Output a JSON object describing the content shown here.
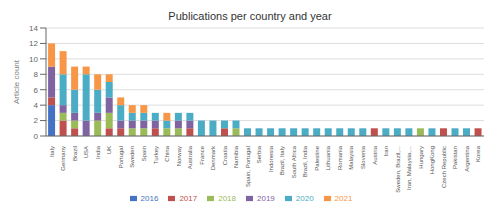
{
  "chart_data": {
    "type": "bar",
    "title": "Publications per country and year",
    "ylabel": "Article count",
    "categories": [
      "Italy",
      "Germany",
      "Brazil",
      "USA",
      "India",
      "UK",
      "Portugal",
      "Sweden",
      "Spain",
      "Turkey",
      "China",
      "Norway",
      "Australia",
      "France",
      "Denmark",
      "Croatia",
      "Namibia",
      "Spain, Portugal",
      "Serbia",
      "Indonesia",
      "Brazil, Italy",
      "South Africa",
      "Brazil, India",
      "Palestine",
      "Lithuania",
      "Romania",
      "Malaysia",
      "Slovenia",
      "Austria",
      "Iran",
      "Sweden, Brazil,...",
      "Iran, Malaysia,...",
      "Hungary",
      "HongKong",
      "Czech Republic",
      "Pakistan",
      "Argentina",
      "Korea"
    ],
    "series": [
      {
        "name": "2016",
        "color": "#4472c4",
        "values": [
          4,
          0,
          0,
          0,
          0,
          0,
          0,
          0,
          0,
          0,
          0,
          0,
          0,
          0,
          0,
          0,
          0,
          0,
          0,
          0,
          0,
          0,
          0,
          0,
          0,
          0,
          0,
          0,
          0,
          0,
          0,
          0,
          0,
          0,
          0,
          0,
          0,
          0
        ]
      },
      {
        "name": "2017",
        "color": "#c0504d",
        "values": [
          1,
          2,
          1,
          0,
          0,
          1,
          1,
          0,
          0,
          1,
          0,
          0,
          1,
          0,
          0,
          1,
          0,
          0,
          0,
          0,
          0,
          0,
          0,
          0,
          0,
          0,
          0,
          0,
          1,
          0,
          0,
          0,
          0,
          0,
          1,
          0,
          0,
          1
        ]
      },
      {
        "name": "2018",
        "color": "#9bbb59",
        "values": [
          0,
          1,
          1,
          0,
          2,
          2,
          0,
          1,
          1,
          0,
          1,
          1,
          0,
          0,
          0,
          0,
          1,
          0,
          0,
          0,
          0,
          0,
          0,
          0,
          0,
          0,
          0,
          0,
          0,
          0,
          0,
          0,
          1,
          0,
          0,
          0,
          0,
          0
        ]
      },
      {
        "name": "2019",
        "color": "#8064a2",
        "values": [
          4,
          1,
          1,
          2,
          1,
          2,
          1,
          1,
          1,
          1,
          0,
          1,
          1,
          0,
          0,
          0,
          0,
          0,
          0,
          0,
          0,
          0,
          0,
          0,
          0,
          0,
          0,
          0,
          0,
          0,
          0,
          0,
          0,
          0,
          0,
          0,
          0,
          0
        ]
      },
      {
        "name": "2020",
        "color": "#4bacc6",
        "values": [
          0,
          4,
          3,
          6,
          3,
          2,
          2,
          1,
          1,
          1,
          1,
          1,
          1,
          2,
          2,
          1,
          1,
          1,
          1,
          1,
          1,
          1,
          1,
          1,
          1,
          1,
          1,
          1,
          0,
          1,
          1,
          1,
          0,
          1,
          0,
          1,
          1,
          0
        ]
      },
      {
        "name": "2021",
        "color": "#f79646",
        "values": [
          3,
          3,
          3,
          1,
          2,
          1,
          1,
          1,
          1,
          0,
          1,
          0,
          0,
          0,
          0,
          0,
          0,
          0,
          0,
          0,
          0,
          0,
          0,
          0,
          0,
          0,
          0,
          0,
          0,
          0,
          0,
          0,
          0,
          0,
          0,
          0,
          0,
          0
        ]
      }
    ],
    "ylim": [
      0,
      14
    ],
    "yticks": [
      0,
      2,
      4,
      6,
      8,
      10,
      12,
      14
    ],
    "grid": true,
    "stacked": true,
    "legend": "bottom"
  }
}
